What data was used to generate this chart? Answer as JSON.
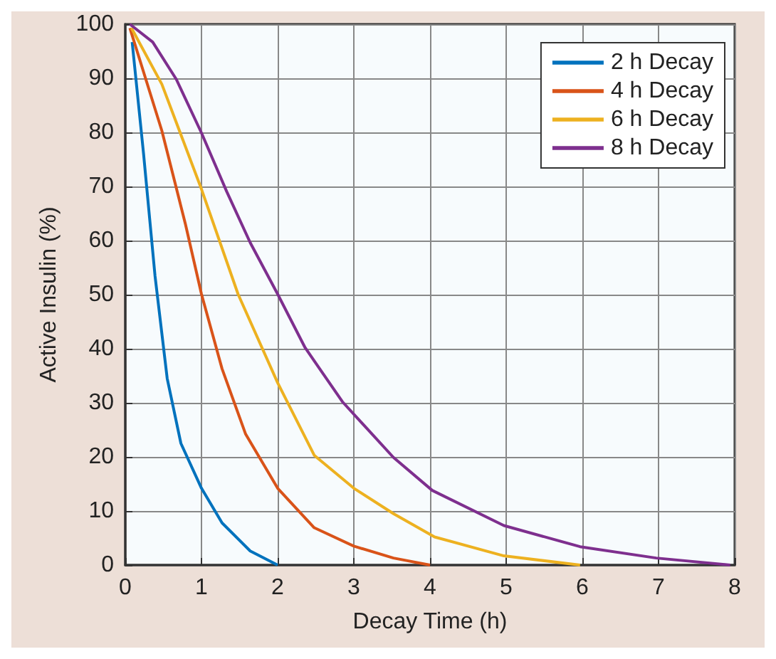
{
  "chart_data": {
    "type": "line",
    "xlabel": "Decay Time (h)",
    "ylabel": "Active Insulin (%)",
    "xlim": [
      0,
      8
    ],
    "xticks": [
      0,
      1,
      2,
      3,
      4,
      5,
      6,
      7,
      8
    ],
    "ylim": [
      0,
      100
    ],
    "yticks": [
      0,
      10,
      20,
      30,
      40,
      50,
      60,
      70,
      80,
      90,
      100
    ],
    "grid": true,
    "legend": "top right",
    "marker": "none",
    "line_style": "solid",
    "series": [
      {
        "name": "2 h Decay",
        "color": "#0072bd",
        "x": [
          0.09,
          0.24,
          0.39,
          0.55,
          0.73,
          1,
          1.27,
          1.64,
          2
        ],
        "values": [
          96.7,
          76,
          53.5,
          34.5,
          22.5,
          14.2,
          7.8,
          2.6,
          0
        ]
      },
      {
        "name": "4 h Decay",
        "color": "#d95319",
        "x": [
          0.06,
          0.48,
          0.79,
          1,
          1.27,
          1.58,
          2,
          2.48,
          3,
          3.52,
          4
        ],
        "values": [
          99.3,
          80.3,
          63,
          50.1,
          36.3,
          24.2,
          14.2,
          6.9,
          3.5,
          1.3,
          0
        ]
      },
      {
        "name": "6 h Decay",
        "color": "#edb120",
        "x": [
          0.08,
          0.48,
          1,
          1.48,
          2,
          2.48,
          3,
          3.52,
          4.06,
          4.97,
          5.97
        ],
        "values": [
          99.3,
          88.9,
          69.5,
          50.1,
          33.7,
          20.3,
          14.2,
          9.5,
          5.2,
          1.7,
          0
        ]
      },
      {
        "name": "8 h Decay",
        "color": "#7e2f8e",
        "x": [
          0.06,
          0.36,
          0.67,
          1,
          1.33,
          1.64,
          2,
          2.36,
          2.85,
          3.52,
          4.03,
          4.97,
          5.97,
          6.97,
          7.94
        ],
        "values": [
          100,
          96.7,
          89.8,
          79.9,
          69.1,
          59.6,
          50.1,
          40.2,
          30.2,
          19.9,
          13.8,
          7.3,
          3.4,
          1.3,
          0
        ]
      }
    ]
  }
}
